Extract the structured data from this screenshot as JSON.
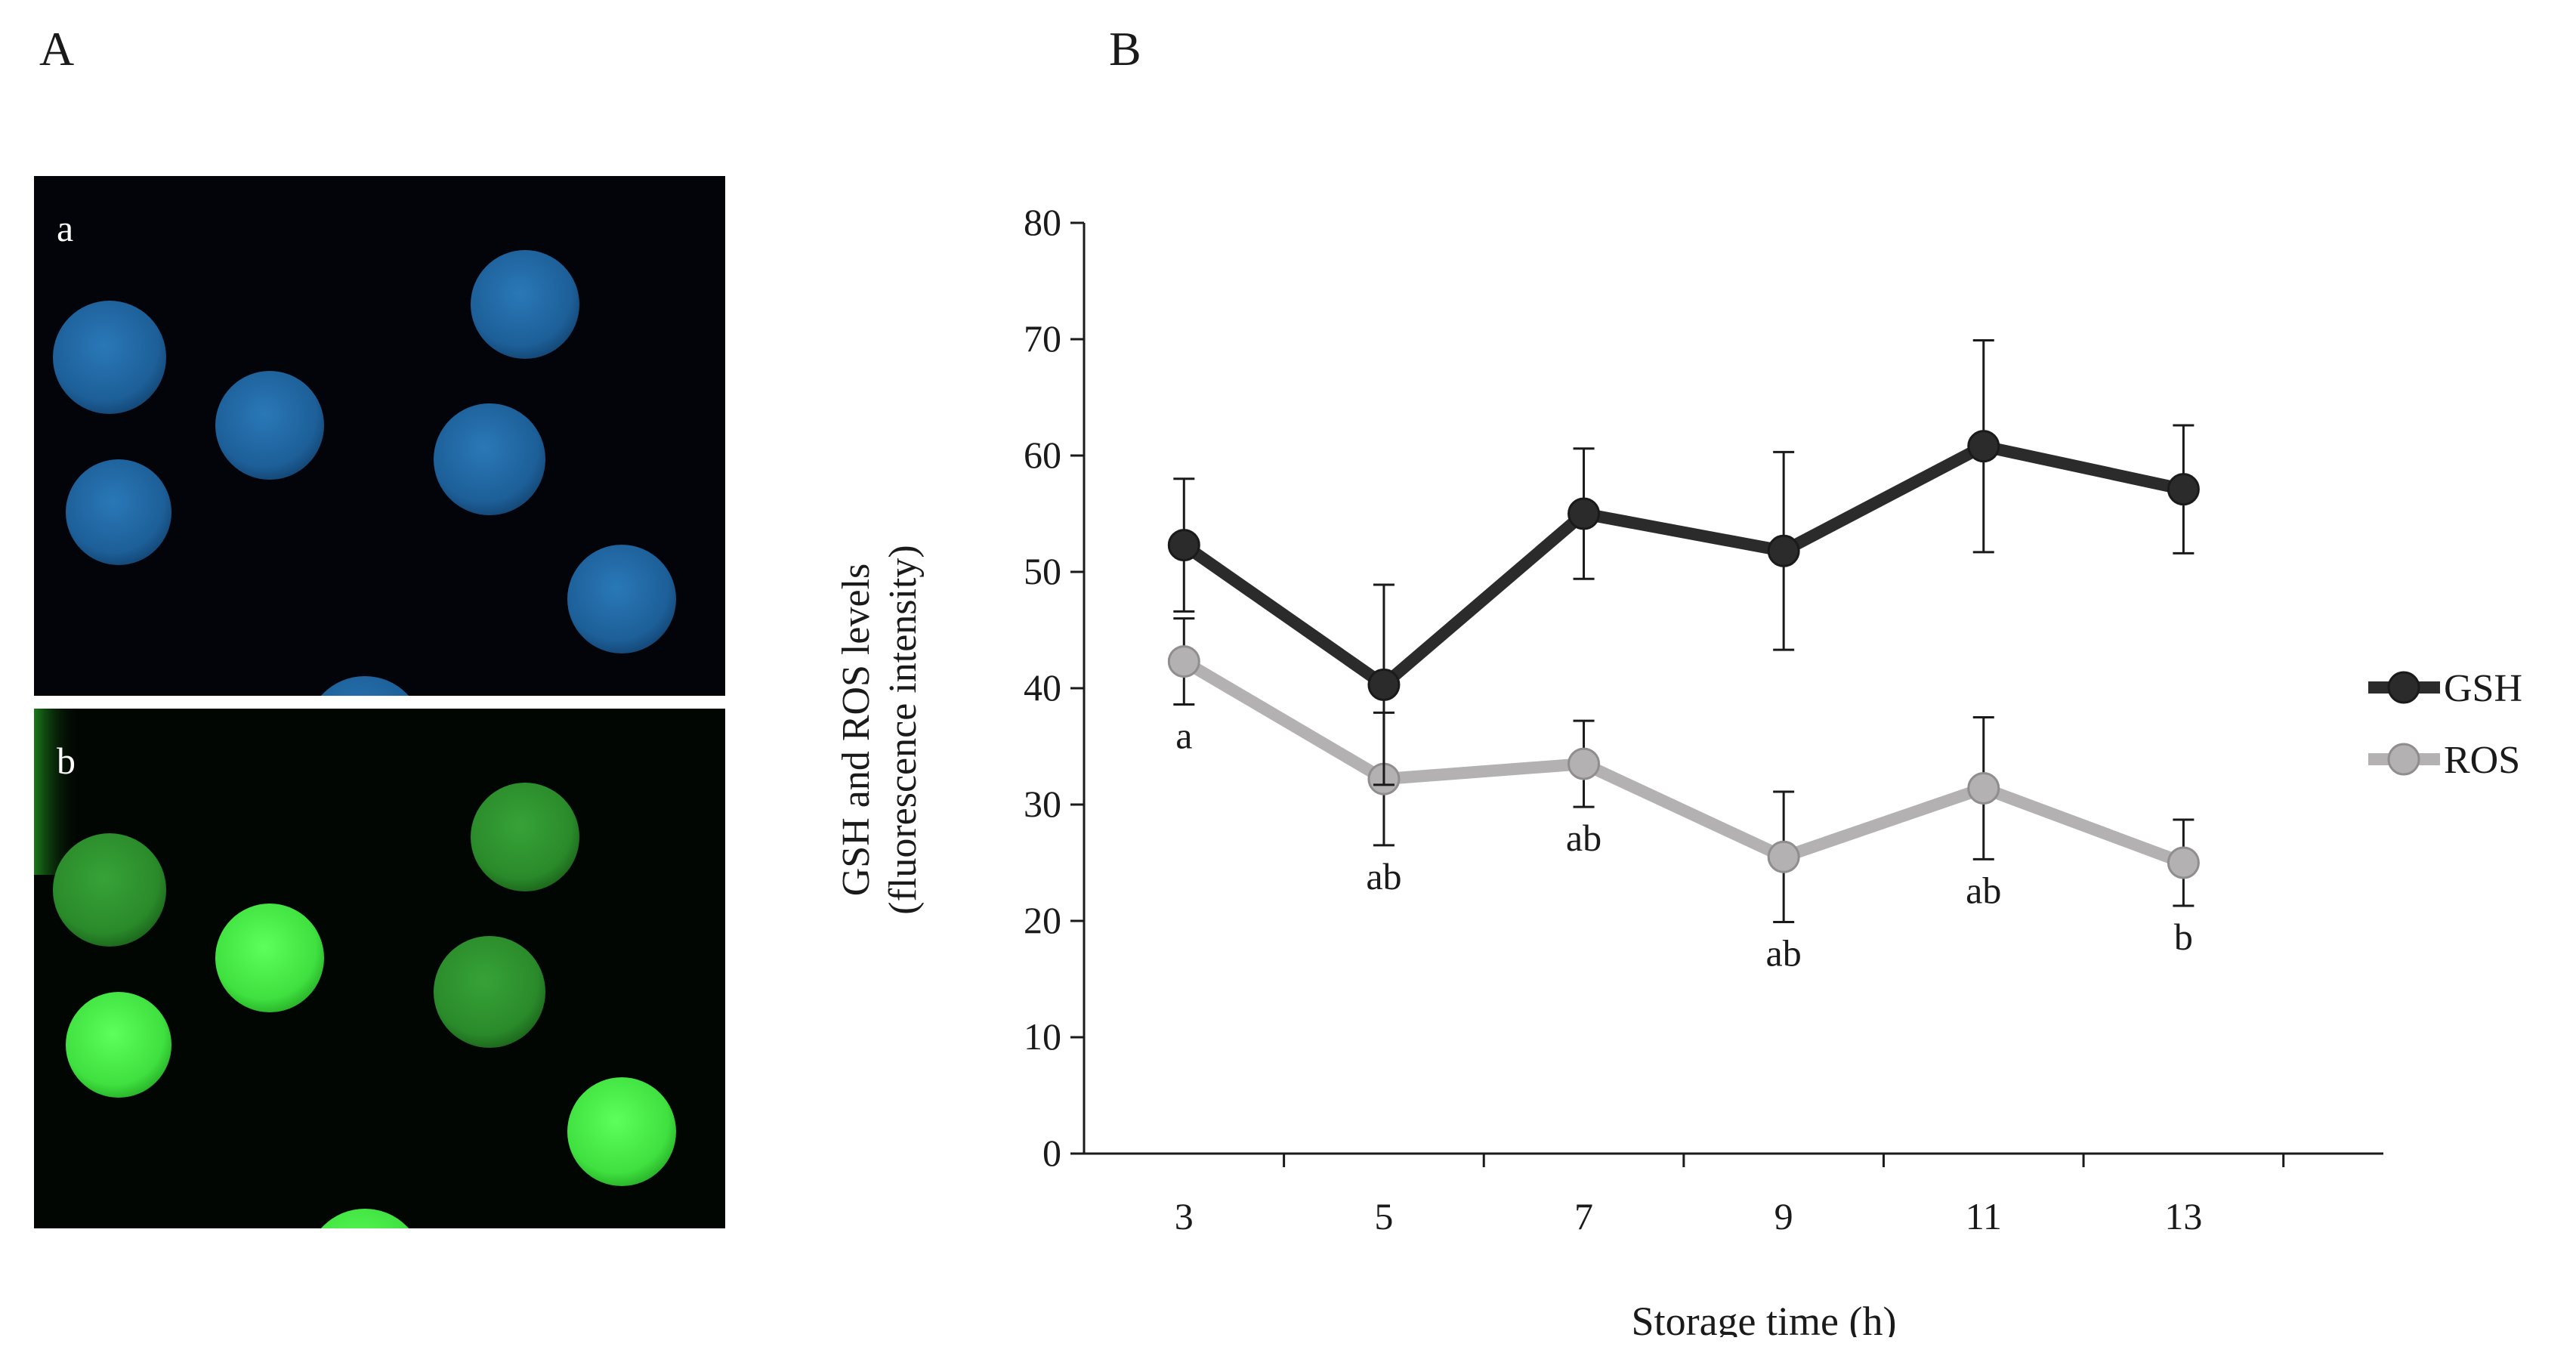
{
  "panels": {
    "left_letter": "A",
    "right_letter": "B",
    "micrograph_top_label": "a",
    "micrograph_bottom_label": "b"
  },
  "micrograph_colors": {
    "top_stain": "#1f5f99",
    "bottom_stain": "#3fd83f"
  },
  "chart_data": {
    "type": "line",
    "xlabel": "Storage time (h)",
    "ylabel_line1": "GSH and ROS levels",
    "ylabel_line2": "(fluorescence  intensity)",
    "x": [
      3,
      5,
      7,
      9,
      11,
      13
    ],
    "ylim": [
      0,
      80
    ],
    "yticks": [
      0,
      10,
      20,
      30,
      40,
      50,
      60,
      70,
      80
    ],
    "grid": false,
    "legend_position": "right",
    "series": [
      {
        "name": "GSH",
        "color": "#2b2b2b",
        "values": [
          52.3,
          40.3,
          55.0,
          51.8,
          60.8,
          57.1
        ],
        "error": [
          5.7,
          8.6,
          5.6,
          8.5,
          9.1,
          5.5
        ]
      },
      {
        "name": "ROS",
        "color": "#b3b1b1",
        "values": [
          42.3,
          32.2,
          33.5,
          25.5,
          31.4,
          25.0
        ],
        "error": [
          3.7,
          5.7,
          3.7,
          5.6,
          6.1,
          3.7
        ],
        "annotations": [
          "a",
          "ab",
          "ab",
          "ab",
          "ab",
          "b"
        ]
      }
    ]
  }
}
